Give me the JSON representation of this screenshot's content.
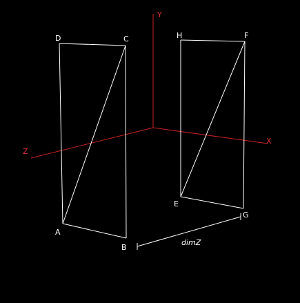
{
  "colors": {
    "background": "#000000",
    "axis": "#cc2222",
    "axis_label": "#e03030",
    "edge": "#ffffff",
    "label": "#ffffff"
  },
  "axes": {
    "x": "X",
    "y": "Y",
    "z": "Z"
  },
  "vertices": {
    "a": "A",
    "b": "B",
    "c": "C",
    "d": "D",
    "e": "E",
    "f": "F",
    "g": "G",
    "h": "H"
  },
  "dimension": {
    "label": "dimZ"
  }
}
